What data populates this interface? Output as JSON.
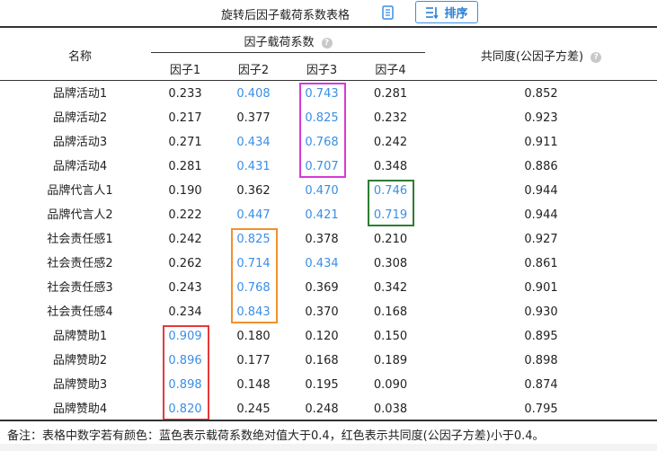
{
  "header": {
    "title": "旋转后因子载荷系数表格",
    "copy_icon": "copy-icon",
    "sort_label": "排序",
    "sort_icon": "sort-icon"
  },
  "colors": {
    "blue": "#3a8ee6",
    "black": "#222222",
    "magenta": "#d63ad6",
    "green": "#2e7d32",
    "orange": "#f0912e",
    "red": "#e5393b"
  },
  "table": {
    "name_header": "名称",
    "group_header": "因子载荷系数",
    "factor_headers": [
      "因子1",
      "因子2",
      "因子3",
      "因子4"
    ],
    "communality_header": "共同度(公因子方差)",
    "rows": [
      {
        "name": "品牌活动1",
        "f": [
          [
            "0.233",
            0
          ],
          [
            "0.408",
            1
          ],
          [
            "0.743",
            1
          ],
          [
            "0.281",
            0
          ]
        ],
        "com": "0.852"
      },
      {
        "name": "品牌活动2",
        "f": [
          [
            "0.217",
            0
          ],
          [
            "0.377",
            0
          ],
          [
            "0.825",
            1
          ],
          [
            "0.232",
            0
          ]
        ],
        "com": "0.923"
      },
      {
        "name": "品牌活动3",
        "f": [
          [
            "0.271",
            0
          ],
          [
            "0.434",
            1
          ],
          [
            "0.768",
            1
          ],
          [
            "0.242",
            0
          ]
        ],
        "com": "0.911"
      },
      {
        "name": "品牌活动4",
        "f": [
          [
            "0.281",
            0
          ],
          [
            "0.431",
            1
          ],
          [
            "0.707",
            1
          ],
          [
            "0.348",
            0
          ]
        ],
        "com": "0.886"
      },
      {
        "name": "品牌代言人1",
        "f": [
          [
            "0.190",
            0
          ],
          [
            "0.362",
            0
          ],
          [
            "0.470",
            1
          ],
          [
            "0.746",
            1
          ]
        ],
        "com": "0.944"
      },
      {
        "name": "品牌代言人2",
        "f": [
          [
            "0.222",
            0
          ],
          [
            "0.447",
            1
          ],
          [
            "0.421",
            1
          ],
          [
            "0.719",
            1
          ]
        ],
        "com": "0.944"
      },
      {
        "name": "社会责任感1",
        "f": [
          [
            "0.242",
            0
          ],
          [
            "0.825",
            1
          ],
          [
            "0.378",
            0
          ],
          [
            "0.210",
            0
          ]
        ],
        "com": "0.927"
      },
      {
        "name": "社会责任感2",
        "f": [
          [
            "0.262",
            0
          ],
          [
            "0.714",
            1
          ],
          [
            "0.434",
            1
          ],
          [
            "0.308",
            0
          ]
        ],
        "com": "0.861"
      },
      {
        "name": "社会责任感3",
        "f": [
          [
            "0.243",
            0
          ],
          [
            "0.768",
            1
          ],
          [
            "0.369",
            0
          ],
          [
            "0.342",
            0
          ]
        ],
        "com": "0.901"
      },
      {
        "name": "社会责任感4",
        "f": [
          [
            "0.234",
            0
          ],
          [
            "0.843",
            1
          ],
          [
            "0.370",
            0
          ],
          [
            "0.168",
            0
          ]
        ],
        "com": "0.930"
      },
      {
        "name": "品牌赞助1",
        "f": [
          [
            "0.909",
            1
          ],
          [
            "0.180",
            0
          ],
          [
            "0.120",
            0
          ],
          [
            "0.150",
            0
          ]
        ],
        "com": "0.895"
      },
      {
        "name": "品牌赞助2",
        "f": [
          [
            "0.896",
            1
          ],
          [
            "0.177",
            0
          ],
          [
            "0.168",
            0
          ],
          [
            "0.189",
            0
          ]
        ],
        "com": "0.898"
      },
      {
        "name": "品牌赞助3",
        "f": [
          [
            "0.898",
            1
          ],
          [
            "0.148",
            0
          ],
          [
            "0.195",
            0
          ],
          [
            "0.090",
            0
          ]
        ],
        "com": "0.874"
      },
      {
        "name": "品牌赞助4",
        "f": [
          [
            "0.820",
            1
          ],
          [
            "0.245",
            0
          ],
          [
            "0.248",
            0
          ],
          [
            "0.038",
            0
          ]
        ],
        "com": "0.795"
      }
    ],
    "highlight_boxes": [
      {
        "color": "magenta",
        "factor": 3,
        "rows": [
          1,
          4
        ]
      },
      {
        "color": "green",
        "factor": 4,
        "rows": [
          5,
          6
        ]
      },
      {
        "color": "orange",
        "factor": 2,
        "rows": [
          7,
          10
        ]
      },
      {
        "color": "red",
        "factor": 1,
        "rows": [
          11,
          14
        ]
      }
    ]
  },
  "footnote": "备注：表格中数字若有颜色：蓝色表示载荷系数绝对值大于0.4，红色表示共同度(公因子方差)小于0.4。"
}
